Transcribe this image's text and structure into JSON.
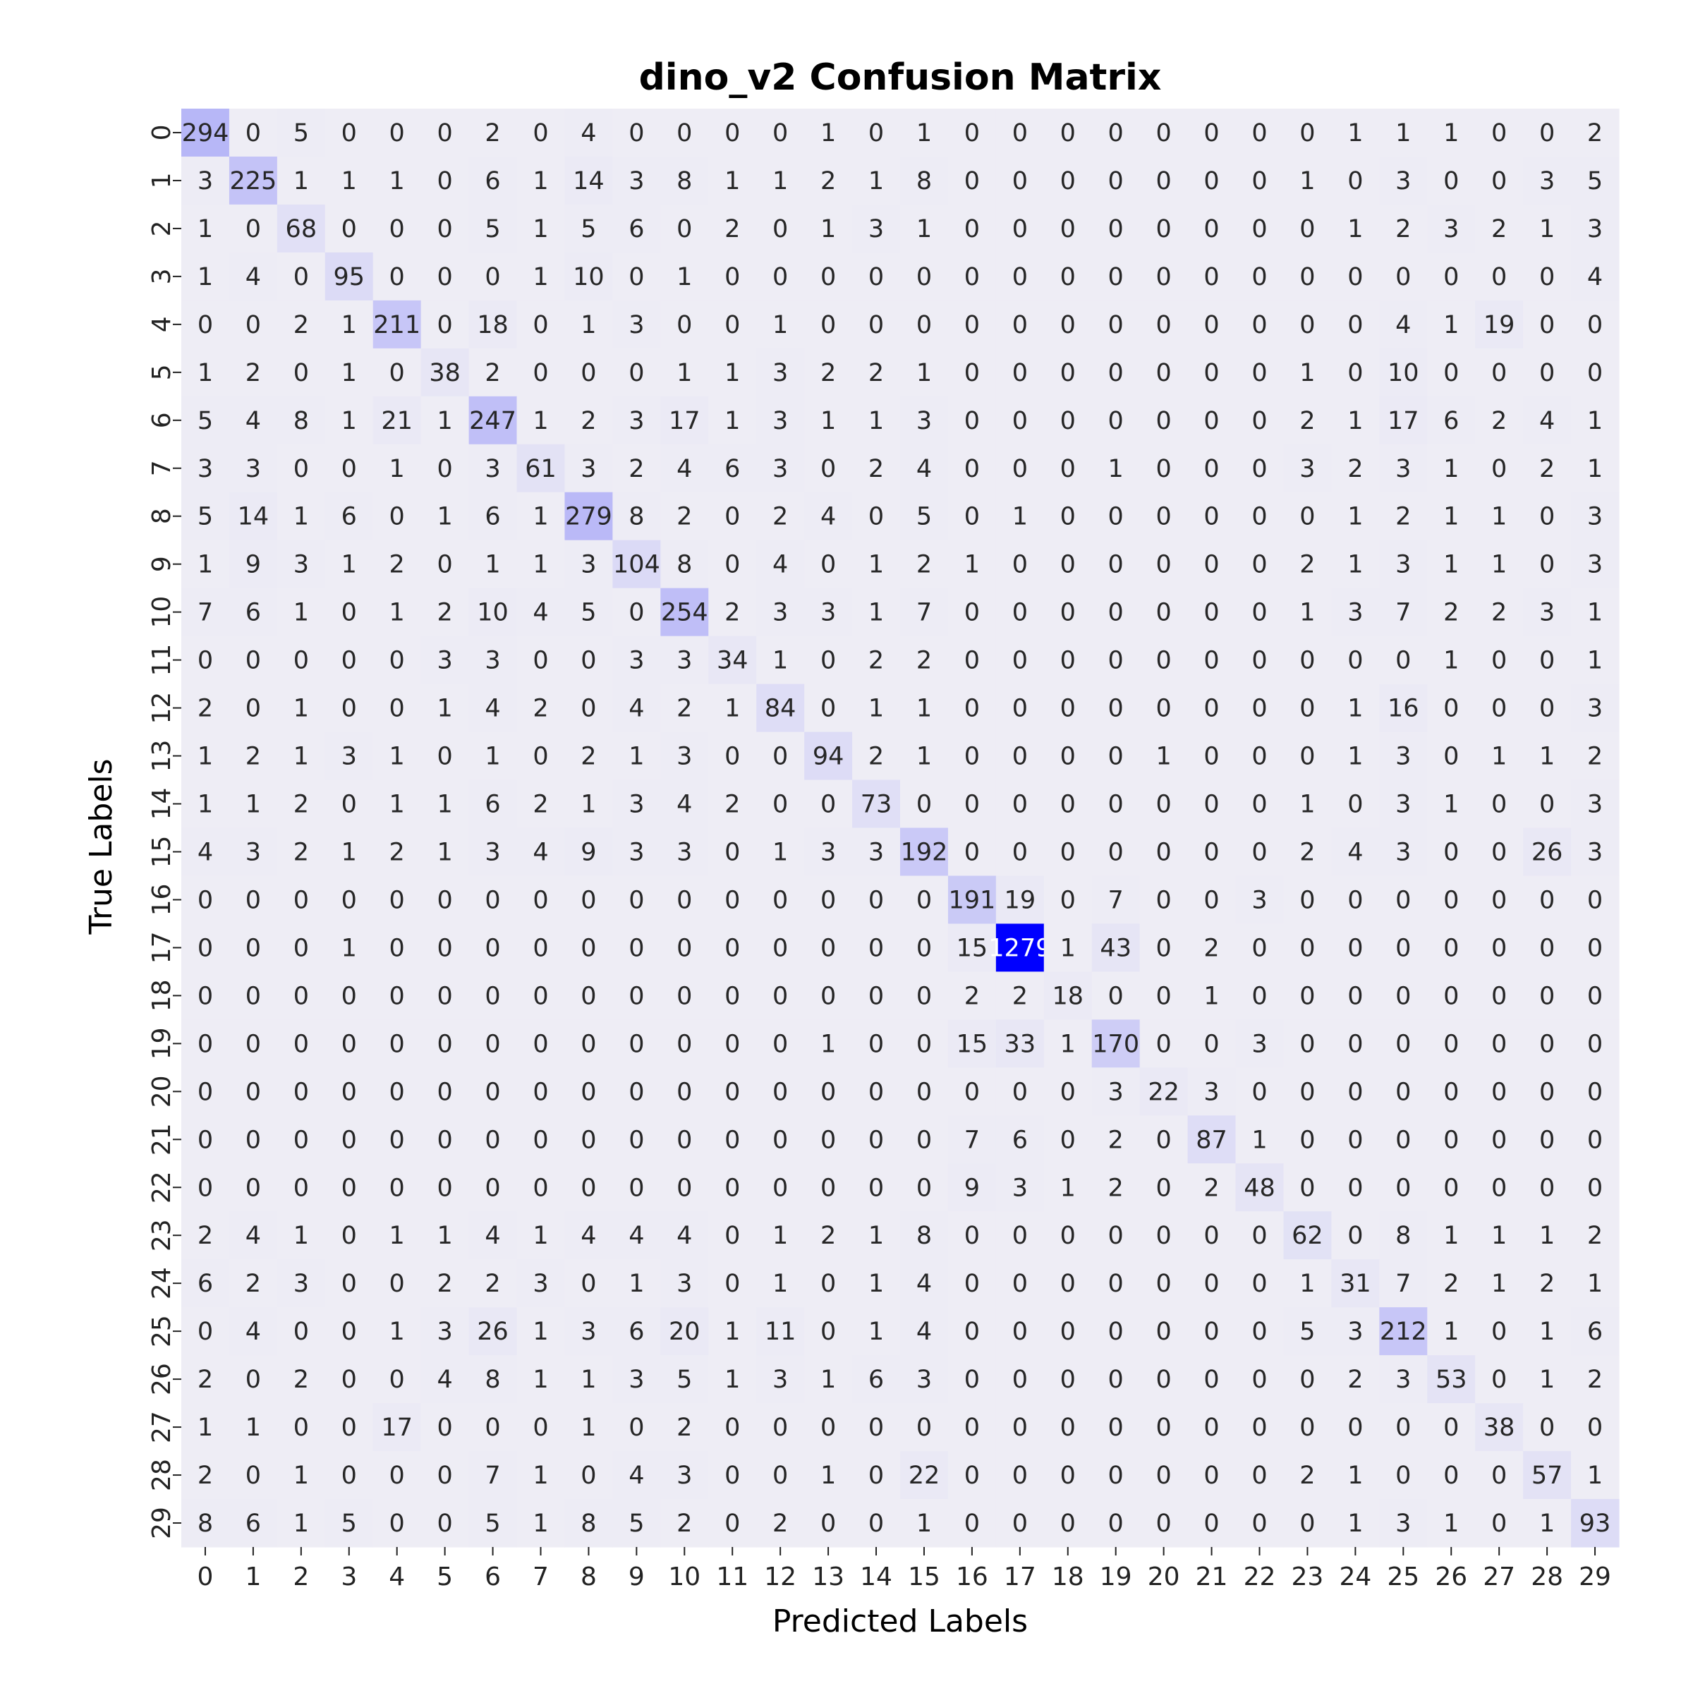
{
  "chart_data": {
    "type": "heatmap",
    "title": "dino_v2 Confusion Matrix",
    "xlabel": "Predicted Labels",
    "ylabel": "True Labels",
    "x_categories": [
      "0",
      "1",
      "2",
      "3",
      "4",
      "5",
      "6",
      "7",
      "8",
      "9",
      "10",
      "11",
      "12",
      "13",
      "14",
      "15",
      "16",
      "17",
      "18",
      "19",
      "20",
      "21",
      "22",
      "23",
      "24",
      "25",
      "26",
      "27",
      "28",
      "29"
    ],
    "y_categories": [
      "0",
      "1",
      "2",
      "3",
      "4",
      "5",
      "6",
      "7",
      "8",
      "9",
      "10",
      "11",
      "12",
      "13",
      "14",
      "15",
      "16",
      "17",
      "18",
      "19",
      "20",
      "21",
      "22",
      "23",
      "24",
      "25",
      "26",
      "27",
      "28",
      "29"
    ],
    "colorscale": {
      "low": "#eeedf5",
      "high": "#0000ff"
    },
    "colorbar": false,
    "matrix": [
      [
        294,
        0,
        5,
        0,
        0,
        0,
        2,
        0,
        4,
        0,
        0,
        0,
        0,
        1,
        0,
        1,
        0,
        0,
        0,
        0,
        0,
        0,
        0,
        0,
        1,
        1,
        1,
        0,
        0,
        2
      ],
      [
        3,
        225,
        1,
        1,
        1,
        0,
        6,
        1,
        14,
        3,
        8,
        1,
        1,
        2,
        1,
        8,
        0,
        0,
        0,
        0,
        0,
        0,
        0,
        1,
        0,
        3,
        0,
        0,
        3,
        5
      ],
      [
        1,
        0,
        68,
        0,
        0,
        0,
        5,
        1,
        5,
        6,
        0,
        2,
        0,
        1,
        3,
        1,
        0,
        0,
        0,
        0,
        0,
        0,
        0,
        0,
        1,
        2,
        3,
        2,
        1,
        3
      ],
      [
        1,
        4,
        0,
        95,
        0,
        0,
        0,
        1,
        10,
        0,
        1,
        0,
        0,
        0,
        0,
        0,
        0,
        0,
        0,
        0,
        0,
        0,
        0,
        0,
        0,
        0,
        0,
        0,
        0,
        4
      ],
      [
        0,
        0,
        2,
        1,
        211,
        0,
        18,
        0,
        1,
        3,
        0,
        0,
        1,
        0,
        0,
        0,
        0,
        0,
        0,
        0,
        0,
        0,
        0,
        0,
        0,
        4,
        1,
        19,
        0,
        0
      ],
      [
        1,
        2,
        0,
        1,
        0,
        38,
        2,
        0,
        0,
        0,
        1,
        1,
        3,
        2,
        2,
        1,
        0,
        0,
        0,
        0,
        0,
        0,
        0,
        1,
        0,
        10,
        0,
        0,
        0,
        0
      ],
      [
        5,
        4,
        8,
        1,
        21,
        1,
        247,
        1,
        2,
        3,
        17,
        1,
        3,
        1,
        1,
        3,
        0,
        0,
        0,
        0,
        0,
        0,
        0,
        2,
        1,
        17,
        6,
        2,
        4,
        1
      ],
      [
        3,
        3,
        0,
        0,
        1,
        0,
        3,
        61,
        3,
        2,
        4,
        6,
        3,
        0,
        2,
        4,
        0,
        0,
        0,
        1,
        0,
        0,
        0,
        3,
        2,
        3,
        1,
        0,
        2,
        1
      ],
      [
        5,
        14,
        1,
        6,
        0,
        1,
        6,
        1,
        279,
        8,
        2,
        0,
        2,
        4,
        0,
        5,
        0,
        1,
        0,
        0,
        0,
        0,
        0,
        0,
        1,
        2,
        1,
        1,
        0,
        3
      ],
      [
        1,
        9,
        3,
        1,
        2,
        0,
        1,
        1,
        3,
        104,
        8,
        0,
        4,
        0,
        1,
        2,
        1,
        0,
        0,
        0,
        0,
        0,
        0,
        2,
        1,
        3,
        1,
        1,
        0,
        3
      ],
      [
        7,
        6,
        1,
        0,
        1,
        2,
        10,
        4,
        5,
        0,
        254,
        2,
        3,
        3,
        1,
        7,
        0,
        0,
        0,
        0,
        0,
        0,
        0,
        1,
        3,
        7,
        2,
        2,
        3,
        1
      ],
      [
        0,
        0,
        0,
        0,
        0,
        3,
        3,
        0,
        0,
        3,
        3,
        34,
        1,
        0,
        2,
        2,
        0,
        0,
        0,
        0,
        0,
        0,
        0,
        0,
        0,
        0,
        1,
        0,
        0,
        1
      ],
      [
        2,
        0,
        1,
        0,
        0,
        1,
        4,
        2,
        0,
        4,
        2,
        1,
        84,
        0,
        1,
        1,
        0,
        0,
        0,
        0,
        0,
        0,
        0,
        0,
        1,
        16,
        0,
        0,
        0,
        3
      ],
      [
        1,
        2,
        1,
        3,
        1,
        0,
        1,
        0,
        2,
        1,
        3,
        0,
        0,
        94,
        2,
        1,
        0,
        0,
        0,
        0,
        1,
        0,
        0,
        0,
        1,
        3,
        0,
        1,
        1,
        2
      ],
      [
        1,
        1,
        2,
        0,
        1,
        1,
        6,
        2,
        1,
        3,
        4,
        2,
        0,
        0,
        73,
        0,
        0,
        0,
        0,
        0,
        0,
        0,
        0,
        1,
        0,
        3,
        1,
        0,
        0,
        3
      ],
      [
        4,
        3,
        2,
        1,
        2,
        1,
        3,
        4,
        9,
        3,
        3,
        0,
        1,
        3,
        3,
        192,
        0,
        0,
        0,
        0,
        0,
        0,
        0,
        2,
        4,
        3,
        0,
        0,
        26,
        3
      ],
      [
        0,
        0,
        0,
        0,
        0,
        0,
        0,
        0,
        0,
        0,
        0,
        0,
        0,
        0,
        0,
        0,
        191,
        19,
        0,
        7,
        0,
        0,
        3,
        0,
        0,
        0,
        0,
        0,
        0,
        0
      ],
      [
        0,
        0,
        0,
        1,
        0,
        0,
        0,
        0,
        0,
        0,
        0,
        0,
        0,
        0,
        0,
        0,
        15,
        1279,
        1,
        43,
        0,
        2,
        0,
        0,
        0,
        0,
        0,
        0,
        0,
        0
      ],
      [
        0,
        0,
        0,
        0,
        0,
        0,
        0,
        0,
        0,
        0,
        0,
        0,
        0,
        0,
        0,
        0,
        2,
        2,
        18,
        0,
        0,
        1,
        0,
        0,
        0,
        0,
        0,
        0,
        0,
        0
      ],
      [
        0,
        0,
        0,
        0,
        0,
        0,
        0,
        0,
        0,
        0,
        0,
        0,
        0,
        1,
        0,
        0,
        15,
        33,
        1,
        170,
        0,
        0,
        3,
        0,
        0,
        0,
        0,
        0,
        0,
        0
      ],
      [
        0,
        0,
        0,
        0,
        0,
        0,
        0,
        0,
        0,
        0,
        0,
        0,
        0,
        0,
        0,
        0,
        0,
        0,
        0,
        3,
        22,
        3,
        0,
        0,
        0,
        0,
        0,
        0,
        0,
        0
      ],
      [
        0,
        0,
        0,
        0,
        0,
        0,
        0,
        0,
        0,
        0,
        0,
        0,
        0,
        0,
        0,
        0,
        7,
        6,
        0,
        2,
        0,
        87,
        1,
        0,
        0,
        0,
        0,
        0,
        0,
        0
      ],
      [
        0,
        0,
        0,
        0,
        0,
        0,
        0,
        0,
        0,
        0,
        0,
        0,
        0,
        0,
        0,
        0,
        9,
        3,
        1,
        2,
        0,
        2,
        48,
        0,
        0,
        0,
        0,
        0,
        0,
        0
      ],
      [
        2,
        4,
        1,
        0,
        1,
        1,
        4,
        1,
        4,
        4,
        4,
        0,
        1,
        2,
        1,
        8,
        0,
        0,
        0,
        0,
        0,
        0,
        0,
        62,
        0,
        8,
        1,
        1,
        1,
        2
      ],
      [
        6,
        2,
        3,
        0,
        0,
        2,
        2,
        3,
        0,
        1,
        3,
        0,
        1,
        0,
        1,
        4,
        0,
        0,
        0,
        0,
        0,
        0,
        0,
        1,
        31,
        7,
        2,
        1,
        2,
        1
      ],
      [
        0,
        4,
        0,
        0,
        1,
        3,
        26,
        1,
        3,
        6,
        20,
        1,
        11,
        0,
        1,
        4,
        0,
        0,
        0,
        0,
        0,
        0,
        0,
        5,
        3,
        212,
        1,
        0,
        1,
        6
      ],
      [
        2,
        0,
        2,
        0,
        0,
        4,
        8,
        1,
        1,
        3,
        5,
        1,
        3,
        1,
        6,
        3,
        0,
        0,
        0,
        0,
        0,
        0,
        0,
        0,
        2,
        3,
        53,
        0,
        1,
        2
      ],
      [
        1,
        1,
        0,
        0,
        17,
        0,
        0,
        0,
        1,
        0,
        2,
        0,
        0,
        0,
        0,
        0,
        0,
        0,
        0,
        0,
        0,
        0,
        0,
        0,
        0,
        0,
        0,
        38,
        0,
        0
      ],
      [
        2,
        0,
        1,
        0,
        0,
        0,
        7,
        1,
        0,
        4,
        3,
        0,
        0,
        1,
        0,
        22,
        0,
        0,
        0,
        0,
        0,
        0,
        0,
        2,
        1,
        0,
        0,
        0,
        57,
        1
      ],
      [
        8,
        6,
        1,
        5,
        0,
        0,
        5,
        1,
        8,
        5,
        2,
        0,
        2,
        0,
        0,
        1,
        0,
        0,
        0,
        0,
        0,
        0,
        0,
        0,
        1,
        3,
        1,
        0,
        1,
        93
      ]
    ]
  }
}
